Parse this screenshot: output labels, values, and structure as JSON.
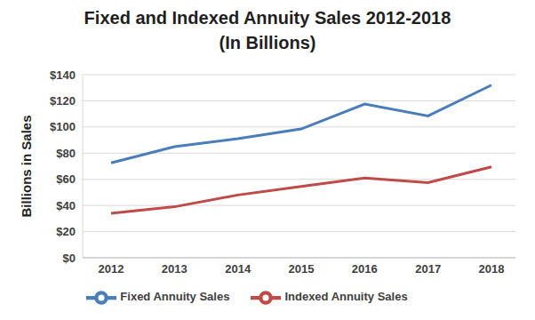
{
  "chart_data": {
    "type": "line",
    "title": "Fixed and Indexed Annuity Sales 2012-2018",
    "subtitle": "(In Billions)",
    "y_label": "Billions in Sales",
    "categories": [
      "2012",
      "2013",
      "2014",
      "2015",
      "2016",
      "2017",
      "2018"
    ],
    "series": [
      {
        "name": "Fixed Annuity Sales",
        "color": "#4a7ebb",
        "values": [
          72.5,
          85,
          91,
          98.5,
          117.5,
          108.5,
          132
        ]
      },
      {
        "name": "Indexed Annuity Sales",
        "color": "#be4b48",
        "values": [
          34,
          39,
          48,
          54.5,
          61,
          57.5,
          69.5
        ]
      }
    ],
    "ylim": [
      0,
      140
    ],
    "yticks": [
      {
        "value": 0,
        "label": "$0"
      },
      {
        "value": 20,
        "label": "$20"
      },
      {
        "value": 40,
        "label": "$40"
      },
      {
        "value": 60,
        "label": "$60"
      },
      {
        "value": 80,
        "label": "$80"
      },
      {
        "value": 100,
        "label": "$100"
      },
      {
        "value": 120,
        "label": "$120"
      },
      {
        "value": 140,
        "label": "$140"
      }
    ],
    "grid": true,
    "legend": "bottom"
  }
}
